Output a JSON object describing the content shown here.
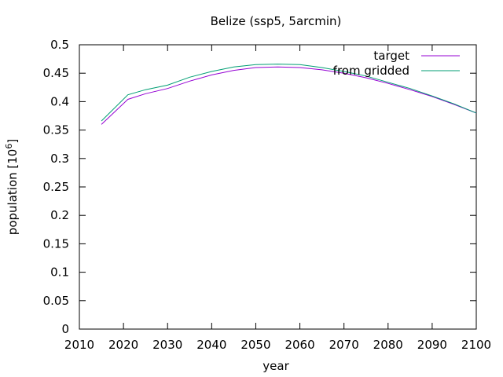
{
  "chart_data": {
    "type": "line",
    "title": "Belize (ssp5, 5arcmin)",
    "xlabel": "year",
    "ylabel_main": "population [10",
    "ylabel_exp": "6",
    "ylabel_close": "]",
    "xlim": [
      2010,
      2100
    ],
    "ylim": [
      0,
      0.5
    ],
    "xticks": [
      2010,
      2020,
      2030,
      2040,
      2050,
      2060,
      2070,
      2080,
      2090,
      2100
    ],
    "yticks": [
      0,
      0.05,
      0.1,
      0.15,
      0.2,
      0.25,
      0.3,
      0.35,
      0.4,
      0.45,
      0.5
    ],
    "ytick_labels": [
      "0",
      "0.05",
      "0.1",
      "0.15",
      "0.2",
      "0.25",
      "0.3",
      "0.35",
      "0.4",
      "0.45",
      "0.5"
    ],
    "grid": false,
    "legend_position": "top-right",
    "x": [
      2015,
      2021,
      2025,
      2030,
      2035,
      2040,
      2045,
      2050,
      2055,
      2060,
      2065,
      2070,
      2075,
      2080,
      2085,
      2090,
      2095,
      2100
    ],
    "series": [
      {
        "name": "target",
        "color": "#9400d3",
        "values": [
          0.36,
          0.404,
          0.414,
          0.423,
          0.436,
          0.447,
          0.455,
          0.46,
          0.461,
          0.46,
          0.456,
          0.45,
          0.442,
          0.432,
          0.421,
          0.409,
          0.395,
          0.38
        ]
      },
      {
        "name": "from gridded",
        "color": "#009e73",
        "values": [
          0.366,
          0.412,
          0.421,
          0.429,
          0.443,
          0.453,
          0.461,
          0.465,
          0.466,
          0.465,
          0.46,
          0.453,
          0.445,
          0.434,
          0.423,
          0.41,
          0.396,
          0.38
        ]
      }
    ]
  }
}
